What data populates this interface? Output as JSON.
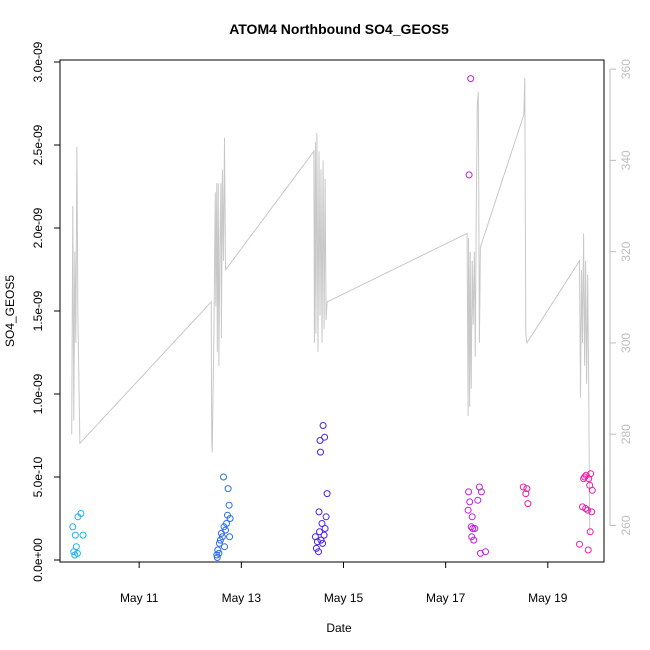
{
  "chart_data": {
    "type": "scatter",
    "title": "ATOM4 Northbound SO4_GEOS5",
    "xlabel": "Date",
    "ylabel": "SO4_GEOS5",
    "x_unit": "days in May",
    "xlim": [
      9.45,
      20.1
    ],
    "ylim": [
      0,
      3e-09
    ],
    "y_ticks": [
      0,
      5e-10,
      1e-09,
      1.5e-09,
      2e-09,
      2.5e-09,
      3e-09
    ],
    "y_tick_labels": [
      "0.0e+00",
      "5.0e-10",
      "1.0e-09",
      "1.5e-09",
      "2.0e-09",
      "2.5e-09",
      "3.0e-09"
    ],
    "x_ticks": [
      11,
      13,
      15,
      17,
      19
    ],
    "x_tick_labels": [
      "May 11",
      "May 13",
      "May 15",
      "May 17",
      "May 19"
    ],
    "y2lim": [
      252,
      362
    ],
    "y2_ticks": [
      260,
      280,
      300,
      320,
      340,
      360
    ],
    "y2_tick_labels": [
      "260",
      "280",
      "300",
      "320",
      "340",
      "360"
    ],
    "grid": false,
    "colors": {
      "line": "#c8c8c8",
      "right_axis": "#bdbdbd",
      "axis": "#000000",
      "point_scale": [
        "#1ab2f2",
        "#2a6cf0",
        "#4a22e8",
        "#8a1ee8",
        "#c21ee0",
        "#e81ea8"
      ]
    },
    "series": [
      {
        "type": "scatter",
        "points": [
          {
            "x": 9.7,
            "y": 2e-10
          },
          {
            "x": 9.72,
            "y": 5e-11
          },
          {
            "x": 9.74,
            "y": 3e-11
          },
          {
            "x": 9.75,
            "y": 1.5e-10
          },
          {
            "x": 9.77,
            "y": 8e-11
          },
          {
            "x": 9.79,
            "y": 4e-11
          },
          {
            "x": 9.8,
            "y": 2.6e-10
          },
          {
            "x": 9.86,
            "y": 2.8e-10
          },
          {
            "x": 9.9,
            "y": 1.5e-10
          },
          {
            "x": 12.52,
            "y": 3e-11
          },
          {
            "x": 12.53,
            "y": 1.5e-11
          },
          {
            "x": 12.54,
            "y": 6e-11
          },
          {
            "x": 12.56,
            "y": 4e-11
          },
          {
            "x": 12.57,
            "y": 1e-10
          },
          {
            "x": 12.59,
            "y": 1.2e-10
          },
          {
            "x": 12.61,
            "y": 1.6e-10
          },
          {
            "x": 12.63,
            "y": 1.4e-10
          },
          {
            "x": 12.65,
            "y": 5e-10
          },
          {
            "x": 12.66,
            "y": 2e-10
          },
          {
            "x": 12.67,
            "y": 8e-11
          },
          {
            "x": 12.69,
            "y": 1.8e-10
          },
          {
            "x": 12.71,
            "y": 2.2e-10
          },
          {
            "x": 12.73,
            "y": 2.7e-10
          },
          {
            "x": 12.74,
            "y": 4.3e-10
          },
          {
            "x": 12.76,
            "y": 3.3e-10
          },
          {
            "x": 12.77,
            "y": 1.4e-10
          },
          {
            "x": 12.78,
            "y": 2.5e-10
          },
          {
            "x": 14.45,
            "y": 1.4e-10
          },
          {
            "x": 14.47,
            "y": 7e-11
          },
          {
            "x": 14.49,
            "y": 1.1e-10
          },
          {
            "x": 14.51,
            "y": 5e-11
          },
          {
            "x": 14.52,
            "y": 2.9e-10
          },
          {
            "x": 14.53,
            "y": 1.7e-10
          },
          {
            "x": 14.54,
            "y": 7.2e-10
          },
          {
            "x": 14.55,
            "y": 6.5e-10
          },
          {
            "x": 14.56,
            "y": 1.2e-10
          },
          {
            "x": 14.58,
            "y": 2.2e-10
          },
          {
            "x": 14.59,
            "y": 1e-10
          },
          {
            "x": 14.6,
            "y": 8.1e-10
          },
          {
            "x": 14.62,
            "y": 1.5e-10
          },
          {
            "x": 14.63,
            "y": 7.4e-10
          },
          {
            "x": 14.64,
            "y": 1.9e-10
          },
          {
            "x": 14.66,
            "y": 2.6e-10
          },
          {
            "x": 14.68,
            "y": 4e-10
          },
          {
            "x": 17.44,
            "y": 3e-10
          },
          {
            "x": 17.45,
            "y": 4.1e-10
          },
          {
            "x": 17.46,
            "y": 2.32e-09
          },
          {
            "x": 17.47,
            "y": 3.5e-10
          },
          {
            "x": 17.49,
            "y": 2.9e-09
          },
          {
            "x": 17.5,
            "y": 2e-10
          },
          {
            "x": 17.51,
            "y": 1.4e-10
          },
          {
            "x": 17.52,
            "y": 2.6e-10
          },
          {
            "x": 17.53,
            "y": 1.9e-10
          },
          {
            "x": 17.55,
            "y": 1.2e-10
          },
          {
            "x": 17.57,
            "y": 1.9e-10
          },
          {
            "x": 17.63,
            "y": 3.6e-10
          },
          {
            "x": 17.66,
            "y": 4.4e-10
          },
          {
            "x": 17.68,
            "y": 4e-11
          },
          {
            "x": 17.7,
            "y": 4.1e-10
          },
          {
            "x": 17.78,
            "y": 5e-11
          },
          {
            "x": 18.52,
            "y": 4.4e-10
          },
          {
            "x": 18.57,
            "y": 4e-10
          },
          {
            "x": 18.59,
            "y": 4.3e-10
          },
          {
            "x": 18.61,
            "y": 3.4e-10
          },
          {
            "x": 19.62,
            "y": 9.5e-11
          },
          {
            "x": 19.68,
            "y": 3.2e-10
          },
          {
            "x": 19.7,
            "y": 4.9e-10
          },
          {
            "x": 19.72,
            "y": 5e-10
          },
          {
            "x": 19.74,
            "y": 3.1e-10
          },
          {
            "x": 19.75,
            "y": 5.1e-10
          },
          {
            "x": 19.78,
            "y": 3e-10
          },
          {
            "x": 19.79,
            "y": 6e-11
          },
          {
            "x": 19.8,
            "y": 4.9e-10
          },
          {
            "x": 19.82,
            "y": 4.5e-10
          },
          {
            "x": 19.83,
            "y": 1.7e-10
          },
          {
            "x": 19.84,
            "y": 5.2e-10
          },
          {
            "x": 19.86,
            "y": 2.9e-10
          },
          {
            "x": 19.87,
            "y": 4.2e-10
          }
        ]
      },
      {
        "type": "line",
        "axis": "right",
        "points": [
          {
            "x": 9.68,
            "y": 280
          },
          {
            "x": 9.7,
            "y": 330
          },
          {
            "x": 9.72,
            "y": 283
          },
          {
            "x": 9.74,
            "y": 320
          },
          {
            "x": 9.76,
            "y": 300
          },
          {
            "x": 9.78,
            "y": 343
          },
          {
            "x": 9.8,
            "y": 306
          },
          {
            "x": 9.84,
            "y": 278
          },
          {
            "x": 12.41,
            "y": 309
          },
          {
            "x": 12.42,
            "y": 279
          },
          {
            "x": 12.43,
            "y": 276
          },
          {
            "x": 12.46,
            "y": 300
          },
          {
            "x": 12.49,
            "y": 333
          },
          {
            "x": 12.5,
            "y": 308
          },
          {
            "x": 12.52,
            "y": 335
          },
          {
            "x": 12.53,
            "y": 298
          },
          {
            "x": 12.55,
            "y": 335
          },
          {
            "x": 12.56,
            "y": 295
          },
          {
            "x": 12.58,
            "y": 321
          },
          {
            "x": 12.6,
            "y": 335
          },
          {
            "x": 12.61,
            "y": 301
          },
          {
            "x": 12.63,
            "y": 338
          },
          {
            "x": 12.65,
            "y": 318
          },
          {
            "x": 12.67,
            "y": 345
          },
          {
            "x": 12.69,
            "y": 316
          },
          {
            "x": 14.42,
            "y": 342
          },
          {
            "x": 14.43,
            "y": 300
          },
          {
            "x": 14.45,
            "y": 344
          },
          {
            "x": 14.46,
            "y": 302
          },
          {
            "x": 14.48,
            "y": 346
          },
          {
            "x": 14.5,
            "y": 298
          },
          {
            "x": 14.52,
            "y": 342
          },
          {
            "x": 14.54,
            "y": 306
          },
          {
            "x": 14.56,
            "y": 338
          },
          {
            "x": 14.58,
            "y": 300
          },
          {
            "x": 14.6,
            "y": 340
          },
          {
            "x": 14.62,
            "y": 303
          },
          {
            "x": 14.64,
            "y": 336
          },
          {
            "x": 14.66,
            "y": 305
          },
          {
            "x": 14.68,
            "y": 309
          },
          {
            "x": 17.42,
            "y": 324
          },
          {
            "x": 17.44,
            "y": 284
          },
          {
            "x": 17.45,
            "y": 323
          },
          {
            "x": 17.47,
            "y": 286
          },
          {
            "x": 17.48,
            "y": 320
          },
          {
            "x": 17.5,
            "y": 290
          },
          {
            "x": 17.52,
            "y": 318
          },
          {
            "x": 17.54,
            "y": 304
          },
          {
            "x": 17.56,
            "y": 320
          },
          {
            "x": 17.58,
            "y": 297
          },
          {
            "x": 17.6,
            "y": 330
          },
          {
            "x": 17.62,
            "y": 352
          },
          {
            "x": 17.64,
            "y": 355
          },
          {
            "x": 17.66,
            "y": 300
          },
          {
            "x": 17.68,
            "y": 321
          },
          {
            "x": 18.53,
            "y": 350
          },
          {
            "x": 18.55,
            "y": 358
          },
          {
            "x": 18.57,
            "y": 302
          },
          {
            "x": 18.59,
            "y": 300
          },
          {
            "x": 19.62,
            "y": 318
          },
          {
            "x": 19.64,
            "y": 288
          },
          {
            "x": 19.66,
            "y": 316
          },
          {
            "x": 19.68,
            "y": 300
          },
          {
            "x": 19.7,
            "y": 324
          },
          {
            "x": 19.72,
            "y": 295
          },
          {
            "x": 19.74,
            "y": 318
          },
          {
            "x": 19.76,
            "y": 291
          },
          {
            "x": 19.78,
            "y": 315
          },
          {
            "x": 19.8,
            "y": 290
          },
          {
            "x": 19.82,
            "y": 258
          }
        ]
      }
    ]
  }
}
